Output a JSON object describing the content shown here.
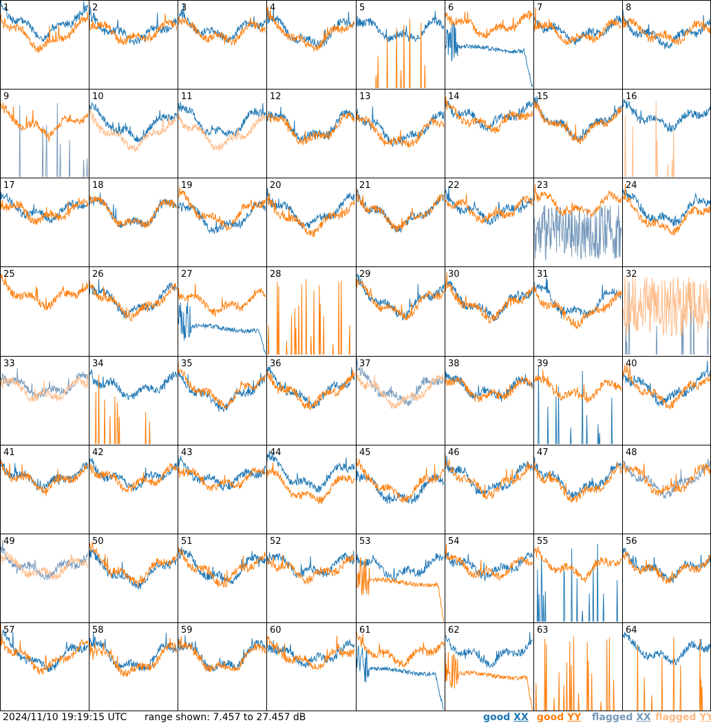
{
  "footer": {
    "timestamp": "2024/11/10 19:19:15 UTC",
    "range_text": "range shown: 7.457 to 27.457 dB",
    "legend": [
      {
        "prefix": "good ",
        "pol": "XX",
        "color": "#1f77b4"
      },
      {
        "prefix": "good ",
        "pol": "YY",
        "color": "#ff7f0e"
      },
      {
        "prefix": "flagged ",
        "pol": "XX",
        "color": "#7799bb"
      },
      {
        "prefix": "flagged ",
        "pol": "YY",
        "color": "#ffbb88"
      }
    ]
  },
  "chart_data": {
    "type": "line",
    "panel_count": 64,
    "rows": 8,
    "cols": 8,
    "y_range_db": [
      7.457,
      27.457
    ],
    "series_types": [
      "good XX",
      "good YY",
      "flagged XX",
      "flagged YY"
    ],
    "colors": {
      "good_xx": "#1f77b4",
      "good_yy": "#ff7f0e",
      "flagged_xx": "#7799bb",
      "flagged_yy": "#ffbb88"
    },
    "panels": [
      {
        "id": 1,
        "xx": "good",
        "yy": "good",
        "xx_level": 0.74,
        "yy_level": 0.62,
        "shape": "dip"
      },
      {
        "id": 2,
        "xx": "good",
        "yy": "good",
        "xx_level": 0.66,
        "yy_level": 0.64,
        "shape": "wavy"
      },
      {
        "id": 3,
        "xx": "good",
        "yy": "good",
        "xx_level": 0.68,
        "yy_level": 0.64,
        "shape": "wavy"
      },
      {
        "id": 4,
        "xx": "good",
        "yy": "good",
        "xx_level": 0.64,
        "yy_level": 0.62,
        "shape": "dip"
      },
      {
        "id": 5,
        "xx": "good",
        "yy": "good",
        "xx_level": 0.66,
        "yy_level": 0.0,
        "shape": "spikes_yy"
      },
      {
        "id": 6,
        "xx": "good",
        "yy": "good",
        "xx_level": 0.45,
        "yy_level": 0.72,
        "shape": "xx_drop"
      },
      {
        "id": 7,
        "xx": "good",
        "yy": "good",
        "xx_level": 0.66,
        "yy_level": 0.64,
        "shape": "wavy"
      },
      {
        "id": 8,
        "xx": "good",
        "yy": "good",
        "xx_level": 0.62,
        "yy_level": 0.64,
        "shape": "wavy"
      },
      {
        "id": 9,
        "xx": "flagged",
        "yy": "good",
        "xx_level": 0.0,
        "yy_level": 0.62,
        "shape": "spikes_xx"
      },
      {
        "id": 10,
        "xx": "good",
        "yy": "flagged",
        "xx_level": 0.6,
        "yy_level": 0.5,
        "shape": "dip"
      },
      {
        "id": 11,
        "xx": "good",
        "yy": "flagged",
        "xx_level": 0.62,
        "yy_level": 0.5,
        "shape": "dip"
      },
      {
        "id": 12,
        "xx": "good",
        "yy": "good",
        "xx_level": 0.58,
        "yy_level": 0.55,
        "shape": "dip"
      },
      {
        "id": 13,
        "xx": "good",
        "yy": "good",
        "xx_level": 0.55,
        "yy_level": 0.5,
        "shape": "dip"
      },
      {
        "id": 14,
        "xx": "good",
        "yy": "good",
        "xx_level": 0.7,
        "yy_level": 0.66,
        "shape": "wavy"
      },
      {
        "id": 15,
        "xx": "good",
        "yy": "good",
        "xx_level": 0.62,
        "yy_level": 0.6,
        "shape": "dip"
      },
      {
        "id": 16,
        "xx": "good",
        "yy": "flagged",
        "xx_level": 0.68,
        "yy_level": 0.0,
        "shape": "spikes_yy"
      },
      {
        "id": 17,
        "xx": "good",
        "yy": "good",
        "xx_level": 0.64,
        "yy_level": 0.62,
        "shape": "wavy"
      },
      {
        "id": 18,
        "xx": "good",
        "yy": "good",
        "xx_level": 0.6,
        "yy_level": 0.6,
        "shape": "dip"
      },
      {
        "id": 19,
        "xx": "good",
        "yy": "good",
        "xx_level": 0.55,
        "yy_level": 0.62,
        "shape": "dip"
      },
      {
        "id": 20,
        "xx": "good",
        "yy": "good",
        "xx_level": 0.62,
        "yy_level": 0.55,
        "shape": "dip"
      },
      {
        "id": 21,
        "xx": "good",
        "yy": "good",
        "xx_level": 0.6,
        "yy_level": 0.6,
        "shape": "dip"
      },
      {
        "id": 22,
        "xx": "good",
        "yy": "good",
        "xx_level": 0.64,
        "yy_level": 0.64,
        "shape": "wavy"
      },
      {
        "id": 23,
        "xx": "flagged",
        "yy": "good",
        "xx_level": 0.35,
        "yy_level": 0.7,
        "shape": "noisy_xx"
      },
      {
        "id": 24,
        "xx": "good",
        "yy": "good",
        "xx_level": 0.64,
        "yy_level": 0.55,
        "shape": "dip"
      },
      {
        "id": 25,
        "xx": "good",
        "yy": "good",
        "xx_level": 0.0,
        "yy_level": 0.68,
        "shape": "yy_only"
      },
      {
        "id": 26,
        "xx": "good",
        "yy": "good",
        "xx_level": 0.62,
        "yy_level": 0.6,
        "shape": "dip"
      },
      {
        "id": 27,
        "xx": "good",
        "yy": "good",
        "xx_level": 0.3,
        "yy_level": 0.6,
        "shape": "xx_low"
      },
      {
        "id": 28,
        "xx": "good",
        "yy": "good",
        "xx_level": 0.0,
        "yy_level": 0.0,
        "shape": "spikes_yy"
      },
      {
        "id": 29,
        "xx": "good",
        "yy": "good",
        "xx_level": 0.62,
        "yy_level": 0.6,
        "shape": "dip"
      },
      {
        "id": 30,
        "xx": "good",
        "yy": "good",
        "xx_level": 0.6,
        "yy_level": 0.58,
        "shape": "dip"
      },
      {
        "id": 31,
        "xx": "good",
        "yy": "good",
        "xx_level": 0.6,
        "yy_level": 0.52,
        "shape": "dip"
      },
      {
        "id": 32,
        "xx": "flagged",
        "yy": "flagged",
        "xx_level": 0.0,
        "yy_level": 0.58,
        "shape": "noisy_yy"
      },
      {
        "id": 33,
        "xx": "flagged",
        "yy": "flagged",
        "xx_level": 0.66,
        "yy_level": 0.62,
        "shape": "wavy"
      },
      {
        "id": 34,
        "xx": "good",
        "yy": "good",
        "xx_level": 0.66,
        "yy_level": 0.0,
        "shape": "spikes_yy"
      },
      {
        "id": 35,
        "xx": "good",
        "yy": "good",
        "xx_level": 0.58,
        "yy_level": 0.62,
        "shape": "dip"
      },
      {
        "id": 36,
        "xx": "good",
        "yy": "good",
        "xx_level": 0.62,
        "yy_level": 0.6,
        "shape": "dip"
      },
      {
        "id": 37,
        "xx": "flagged",
        "yy": "flagged",
        "xx_level": 0.64,
        "yy_level": 0.6,
        "shape": "dip"
      },
      {
        "id": 38,
        "xx": "good",
        "yy": "good",
        "xx_level": 0.64,
        "yy_level": 0.62,
        "shape": "wavy"
      },
      {
        "id": 39,
        "xx": "good",
        "yy": "good",
        "xx_level": 0.0,
        "yy_level": 0.62,
        "shape": "spikes_xx"
      },
      {
        "id": 40,
        "xx": "good",
        "yy": "good",
        "xx_level": 0.64,
        "yy_level": 0.62,
        "shape": "dip"
      },
      {
        "id": 41,
        "xx": "good",
        "yy": "good",
        "xx_level": 0.64,
        "yy_level": 0.62,
        "shape": "wavy"
      },
      {
        "id": 42,
        "xx": "good",
        "yy": "good",
        "xx_level": 0.64,
        "yy_level": 0.62,
        "shape": "wavy"
      },
      {
        "id": 43,
        "xx": "good",
        "yy": "good",
        "xx_level": 0.64,
        "yy_level": 0.62,
        "shape": "wavy"
      },
      {
        "id": 44,
        "xx": "good",
        "yy": "good",
        "xx_level": 0.66,
        "yy_level": 0.52,
        "shape": "dip"
      },
      {
        "id": 45,
        "xx": "good",
        "yy": "good",
        "xx_level": 0.5,
        "yy_level": 0.56,
        "shape": "dip"
      },
      {
        "id": 46,
        "xx": "good",
        "yy": "good",
        "xx_level": 0.62,
        "yy_level": 0.6,
        "shape": "dip"
      },
      {
        "id": 47,
        "xx": "good",
        "yy": "good",
        "xx_level": 0.6,
        "yy_level": 0.55,
        "shape": "dip"
      },
      {
        "id": 48,
        "xx": "flagged",
        "yy": "good",
        "xx_level": 0.6,
        "yy_level": 0.6,
        "shape": "dip"
      },
      {
        "id": 49,
        "xx": "flagged",
        "yy": "flagged",
        "xx_level": 0.64,
        "yy_level": 0.62,
        "shape": "wavy"
      },
      {
        "id": 50,
        "xx": "good",
        "yy": "good",
        "xx_level": 0.58,
        "yy_level": 0.62,
        "shape": "dip"
      },
      {
        "id": 51,
        "xx": "good",
        "yy": "good",
        "xx_level": 0.62,
        "yy_level": 0.6,
        "shape": "dip"
      },
      {
        "id": 52,
        "xx": "good",
        "yy": "good",
        "xx_level": 0.64,
        "yy_level": 0.6,
        "shape": "wavy"
      },
      {
        "id": 53,
        "xx": "good",
        "yy": "good",
        "xx_level": 0.62,
        "yy_level": 0.45,
        "shape": "yy_drop"
      },
      {
        "id": 54,
        "xx": "good",
        "yy": "good",
        "xx_level": 0.64,
        "yy_level": 0.62,
        "shape": "wavy"
      },
      {
        "id": 55,
        "xx": "good",
        "yy": "good",
        "xx_level": 0.0,
        "yy_level": 0.64,
        "shape": "spikes_xx"
      },
      {
        "id": 56,
        "xx": "good",
        "yy": "good",
        "xx_level": 0.62,
        "yy_level": 0.6,
        "shape": "wavy"
      },
      {
        "id": 57,
        "xx": "good",
        "yy": "good",
        "xx_level": 0.64,
        "yy_level": 0.62,
        "shape": "dip"
      },
      {
        "id": 58,
        "xx": "good",
        "yy": "good",
        "xx_level": 0.62,
        "yy_level": 0.58,
        "shape": "dip"
      },
      {
        "id": 59,
        "xx": "good",
        "yy": "good",
        "xx_level": 0.62,
        "yy_level": 0.6,
        "shape": "dip"
      },
      {
        "id": 60,
        "xx": "good",
        "yy": "good",
        "xx_level": 0.64,
        "yy_level": 0.62,
        "shape": "wavy"
      },
      {
        "id": 61,
        "xx": "good",
        "yy": "good",
        "xx_level": 0.45,
        "yy_level": 0.66,
        "shape": "xx_drop"
      },
      {
        "id": 62,
        "xx": "good",
        "yy": "good",
        "xx_level": 0.66,
        "yy_level": 0.4,
        "shape": "yy_drop"
      },
      {
        "id": 63,
        "xx": "good",
        "yy": "good",
        "xx_level": 0.0,
        "yy_level": 0.0,
        "shape": "spikes_yy"
      },
      {
        "id": 64,
        "xx": "good",
        "yy": "good",
        "xx_level": 0.68,
        "yy_level": 0.0,
        "shape": "spikes_yy"
      }
    ]
  }
}
